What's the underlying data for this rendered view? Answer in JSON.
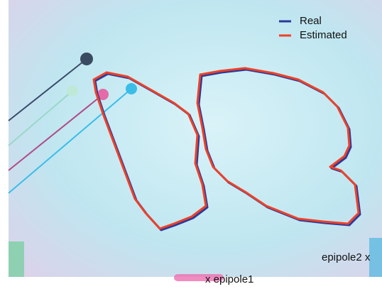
{
  "legend": {
    "items": [
      {
        "label": "Real",
        "color": "#2b3a9a"
      },
      {
        "label": "Estimated",
        "color": "#ee4127"
      }
    ]
  },
  "annotations": {
    "epipole2": "epipole2 x",
    "epipole1": "x epipole1"
  }
}
